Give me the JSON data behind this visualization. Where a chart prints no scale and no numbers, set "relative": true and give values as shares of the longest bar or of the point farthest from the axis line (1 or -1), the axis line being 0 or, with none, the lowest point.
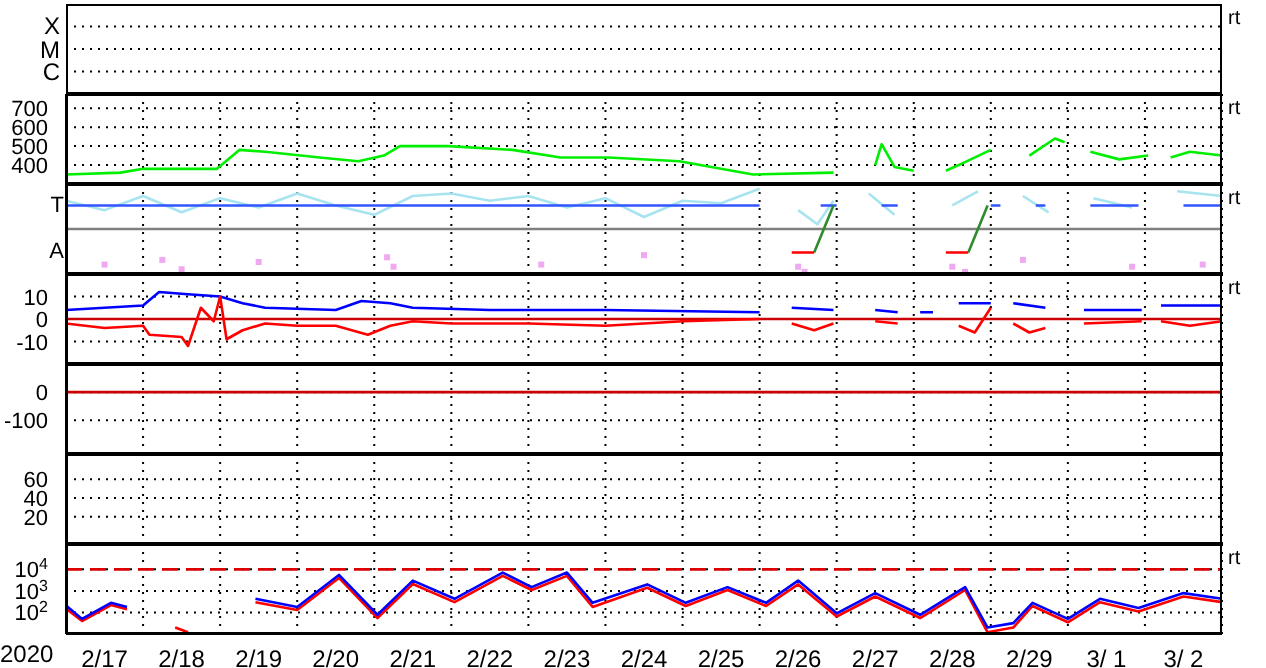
{
  "chart_data": [
    {
      "type": "other",
      "annotations": [
        "rt",
        "X",
        "M",
        "C"
      ]
    },
    {
      "type": "line",
      "ylim": [
        300,
        775
      ],
      "yticks": [
        400,
        500,
        600,
        700
      ],
      "xlim": [
        "2020-02-17",
        "2020-03-03"
      ],
      "xticks": [
        {
          "value": "2020-02-17",
          "label": null
        },
        {
          "value": "2020-02-18",
          "label": null
        },
        {
          "value": "2020-02-19",
          "label": null
        },
        {
          "value": "2020-02-20",
          "label": null
        },
        {
          "value": "2020-02-21",
          "label": null
        },
        {
          "value": "2020-02-22",
          "label": null
        },
        {
          "value": "2020-02-23",
          "label": null
        },
        {
          "value": "2020-02-24",
          "label": null
        },
        {
          "value": "2020-02-25",
          "label": null
        },
        {
          "value": "2020-02-26",
          "label": null
        },
        {
          "value": "2020-02-27",
          "label": null
        },
        {
          "value": "2020-02-28",
          "label": null
        },
        {
          "value": "2020-02-29",
          "label": null
        },
        {
          "value": "2020-03-01",
          "label": null
        },
        {
          "value": "2020-03-02",
          "label": null
        },
        {
          "value": "2020-03-03",
          "label": null
        }
      ],
      "grid": true,
      "tick_labels": "y",
      "annotations": [
        "rt"
      ],
      "series": [
        {
          "color": "#00ee00",
          "x": [
            "2020-02-17T00:00",
            "2020-02-17T17:00",
            "2020-02-18T00:00",
            "2020-02-18T23:00",
            "2020-02-19T06:00",
            "2020-02-19T14:00",
            "2020-02-20T07:00",
            "2020-02-20T19:00",
            "2020-02-21T03:00",
            "2020-02-21T08:00",
            "2020-02-21T23:00",
            "2020-02-22T19:00",
            "2020-02-23T10:00",
            "2020-02-24T01:00",
            "2020-02-24T23:00",
            "2020-02-25T12:00",
            "2020-02-25T22:00",
            "2020-02-26T23:00",
            "2020-02-27T06:00",
            "2020-02-27T12:00",
            "2020-02-27T14:00",
            "2020-02-27T18:00",
            "2020-02-28T00:00",
            "2020-02-28T05:00",
            "2020-02-28T10:00",
            "2020-02-28T14:00",
            "2020-02-29T00:00",
            "2020-02-29T06:00",
            "2020-02-29T12:00",
            "2020-02-29T20:00",
            "2020-02-29T23:00",
            "2020-03-01T04:00",
            "2020-03-01T07:00",
            "2020-03-01T16:00",
            "2020-03-02T01:00",
            "2020-03-02T04:00",
            "2020-03-02T08:00",
            "2020-03-02T14:00",
            "2020-03-03T00:00"
          ],
          "values": [
            350,
            360,
            380,
            380,
            480,
            470,
            440,
            420,
            450,
            500,
            500,
            480,
            440,
            440,
            420,
            380,
            350,
            360,
            null,
            400,
            510,
            390,
            370,
            null,
            370,
            400,
            480,
            null,
            450,
            540,
            520,
            null,
            470,
            430,
            450,
            null,
            440,
            470,
            450
          ]
        }
      ]
    },
    {
      "type": "line",
      "relative": true,
      "xlim": [
        "2020-02-17",
        "2020-03-03"
      ],
      "xticks": [
        {
          "value": "2020-02-17",
          "label": null
        },
        {
          "value": "2020-02-18",
          "label": null
        },
        {
          "value": "2020-02-19",
          "label": null
        },
        {
          "value": "2020-02-20",
          "label": null
        },
        {
          "value": "2020-02-21",
          "label": null
        },
        {
          "value": "2020-02-22",
          "label": null
        },
        {
          "value": "2020-02-23",
          "label": null
        },
        {
          "value": "2020-02-24",
          "label": null
        },
        {
          "value": "2020-02-25",
          "label": null
        },
        {
          "value": "2020-02-26",
          "label": null
        },
        {
          "value": "2020-02-27",
          "label": null
        },
        {
          "value": "2020-02-28",
          "label": null
        },
        {
          "value": "2020-02-29",
          "label": null
        },
        {
          "value": "2020-03-01",
          "label": null
        },
        {
          "value": "2020-03-02",
          "label": null
        },
        {
          "value": "2020-03-03",
          "label": null
        }
      ],
      "grid": true,
      "tick_labels": "y",
      "annotations": [
        "rt",
        "T",
        "A"
      ],
      "ref_lines": [
        {
          "axis": "y",
          "value": 0,
          "color": "#808080"
        }
      ],
      "series": [
        {
          "color": "#a8e4f0",
          "x": [
            "2020-02-17T00:00",
            "2020-02-17T12:00",
            "2020-02-18T00:00",
            "2020-02-18T12:00",
            "2020-02-19T00:00",
            "2020-02-19T12:00",
            "2020-02-20T00:00",
            "2020-02-20T12:00",
            "2020-02-21T00:00",
            "2020-02-21T12:00",
            "2020-02-22T00:00",
            "2020-02-22T12:00",
            "2020-02-23T00:00",
            "2020-02-23T12:00",
            "2020-02-24T00:00",
            "2020-02-24T12:00",
            "2020-02-25T00:00",
            "2020-02-25T12:00",
            "2020-02-26T00:00",
            "2020-02-26T04:00",
            "2020-02-26T12:00",
            "2020-02-26T18:00",
            "2020-02-26T23:00",
            "2020-02-27T04:00",
            "2020-02-27T10:00",
            "2020-02-27T18:00",
            "2020-02-28T00:00",
            "2020-02-28T12:00",
            "2020-02-28T20:00",
            "2020-02-29T04:00",
            "2020-02-29T10:00",
            "2020-02-29T18:00",
            "2020-03-01T00:00",
            "2020-03-01T08:00",
            "2020-03-01T20:00",
            "2020-03-02T03:00",
            "2020-03-02T10:00",
            "2020-03-03T00:00"
          ],
          "values": [
            0.66,
            0.44,
            0.77,
            0.39,
            0.72,
            0.5,
            0.83,
            0.55,
            0.33,
            0.77,
            0.83,
            0.66,
            0.77,
            0.5,
            0.72,
            0.28,
            0.66,
            0.6,
            0.94,
            null,
            0.44,
            0.11,
            0.66,
            null,
            0.83,
            0.33,
            null,
            0.55,
            0.88,
            null,
            0.77,
            0.39,
            null,
            0.72,
            0.5,
            null,
            0.88,
            0.77
          ]
        },
        {
          "type": "scatter",
          "marker": "square",
          "color": "#f0a8f0",
          "x": [
            "2020-02-17T12:00",
            "2020-02-18T06:00",
            "2020-02-18T12:00",
            "2020-02-19T12:00",
            "2020-02-21T04:00",
            "2020-02-21T06:00",
            "2020-02-23T04:00",
            "2020-02-24T12:00",
            "2020-02-26T12:00",
            "2020-02-26T14:00",
            "2020-02-28T12:00",
            "2020-02-28T16:00",
            "2020-02-29T10:00",
            "2020-03-01T20:00",
            "2020-03-02T18:00"
          ],
          "values": [
            -0.83,
            -0.72,
            -0.94,
            -0.77,
            -0.66,
            -0.88,
            -0.83,
            -0.61,
            -0.88,
            -1,
            -0.88,
            -1,
            -0.72,
            -0.88,
            -0.83
          ]
        },
        {
          "color": "#3355ff",
          "x": [
            "2020-02-17T00:00",
            "2020-02-26T00:00",
            "2020-02-26T12:00",
            "2020-02-26T19:00",
            "2020-02-27T00:00",
            "2020-02-27T06:00",
            "2020-02-27T14:00",
            "2020-02-27T19:00",
            "2020-02-28T00:00",
            "2020-02-29T00:00",
            "2020-02-29T03:00",
            "2020-02-29T08:00",
            "2020-02-29T14:00",
            "2020-02-29T17:00",
            "2020-03-01T00:00",
            "2020-03-01T07:00",
            "2020-03-01T22:00",
            "2020-03-02T04:00",
            "2020-03-02T12:00",
            "2020-03-03T00:00"
          ],
          "values": [
            0.55,
            0.55,
            null,
            0.55,
            0.55,
            null,
            0.55,
            0.55,
            null,
            0.55,
            0.55,
            null,
            0.55,
            0.55,
            null,
            0.55,
            0.55,
            null,
            0.55,
            0.55
          ]
        },
        {
          "color": "#ff0000",
          "x": [
            "2020-02-26T10:00",
            "2020-02-26T17:00",
            "2020-02-27T00:00",
            "2020-02-28T10:00",
            "2020-02-28T17:00"
          ],
          "values": [
            -0.55,
            -0.55,
            null,
            -0.55,
            -0.55
          ]
        },
        {
          "color": "#2e8b2e",
          "x": [
            "2020-02-26T17:00",
            "2020-02-26T23:00",
            "2020-02-27T12:00",
            "2020-02-28T17:00",
            "2020-02-28T23:00"
          ],
          "values": [
            -0.55,
            0.55,
            null,
            -0.55,
            0.55
          ]
        }
      ]
    },
    {
      "type": "line",
      "ylim": [
        -20,
        20
      ],
      "yticks": [
        -10,
        0,
        10
      ],
      "xlim": [
        "2020-02-17",
        "2020-03-03"
      ],
      "xticks": [
        {
          "value": "2020-02-17",
          "label": null
        },
        {
          "value": "2020-02-18",
          "label": null
        },
        {
          "value": "2020-02-19",
          "label": null
        },
        {
          "value": "2020-02-20",
          "label": null
        },
        {
          "value": "2020-02-21",
          "label": null
        },
        {
          "value": "2020-02-22",
          "label": null
        },
        {
          "value": "2020-02-23",
          "label": null
        },
        {
          "value": "2020-02-24",
          "label": null
        },
        {
          "value": "2020-02-25",
          "label": null
        },
        {
          "value": "2020-02-26",
          "label": null
        },
        {
          "value": "2020-02-27",
          "label": null
        },
        {
          "value": "2020-02-28",
          "label": null
        },
        {
          "value": "2020-02-29",
          "label": null
        },
        {
          "value": "2020-03-01",
          "label": null
        },
        {
          "value": "2020-03-02",
          "label": null
        },
        {
          "value": "2020-03-03",
          "label": null
        }
      ],
      "grid": true,
      "tick_labels": "y",
      "annotations": [
        "rt"
      ],
      "ref_lines": [
        {
          "axis": "y",
          "value": 0,
          "color": "#cc0000"
        }
      ],
      "series": [
        {
          "color": "#0000ff",
          "x": [
            "2020-02-17T00:00",
            "2020-02-17T12:00",
            "2020-02-18T00:00",
            "2020-02-18T05:00",
            "2020-02-18T14:00",
            "2020-02-19T00:00",
            "2020-02-19T07:00",
            "2020-02-19T14:00",
            "2020-02-20T12:00",
            "2020-02-20T20:00",
            "2020-02-21T05:00",
            "2020-02-21T12:00",
            "2020-02-22T12:00",
            "2020-02-24T00:00",
            "2020-02-26T00:00",
            "2020-02-26T05:00",
            "2020-02-26T10:00",
            "2020-02-26T23:00",
            "2020-02-27T06:00",
            "2020-02-27T12:00",
            "2020-02-27T19:00",
            "2020-02-28T00:00",
            "2020-02-28T02:00",
            "2020-02-28T06:00",
            "2020-02-28T09:00",
            "2020-02-28T14:00",
            "2020-02-29T00:00",
            "2020-02-29T04:00",
            "2020-02-29T07:00",
            "2020-02-29T17:00",
            "2020-02-29T20:00",
            "2020-03-01T05:00",
            "2020-03-01T23:00",
            "2020-03-02T03:00",
            "2020-03-02T05:00",
            "2020-03-03T00:00"
          ],
          "values": [
            4,
            5,
            6,
            12,
            11,
            10,
            7,
            5,
            4,
            8,
            7,
            5,
            4,
            4,
            3,
            null,
            5,
            4,
            null,
            4,
            3,
            null,
            3,
            3,
            null,
            7,
            7,
            null,
            7,
            5,
            null,
            4,
            4,
            null,
            6,
            6
          ]
        },
        {
          "color": "#ff0000",
          "x": [
            "2020-02-17T00:00",
            "2020-02-17T12:00",
            "2020-02-18T00:00",
            "2020-02-18T02:00",
            "2020-02-18T12:00",
            "2020-02-18T14:00",
            "2020-02-18T18:00",
            "2020-02-18T22:00",
            "2020-02-19T00:00",
            "2020-02-19T02:00",
            "2020-02-19T07:00",
            "2020-02-19T14:00",
            "2020-02-20T00:00",
            "2020-02-20T12:00",
            "2020-02-20T22:00",
            "2020-02-21T05:00",
            "2020-02-21T12:00",
            "2020-02-22T00:00",
            "2020-02-23T00:00",
            "2020-02-24T00:00",
            "2020-02-25T00:00",
            "2020-02-26T00:00",
            "2020-02-26T05:00",
            "2020-02-26T10:00",
            "2020-02-26T17:00",
            "2020-02-26T23:00",
            "2020-02-27T06:00",
            "2020-02-27T12:00",
            "2020-02-27T19:00",
            "2020-02-28T00:00",
            "2020-02-28T14:00",
            "2020-02-28T19:00",
            "2020-02-29T00:00",
            "2020-02-29T04:00",
            "2020-02-29T07:00",
            "2020-02-29T12:00",
            "2020-02-29T17:00",
            "2020-02-29T20:00",
            "2020-03-01T05:00",
            "2020-03-01T23:00",
            "2020-03-02T03:00",
            "2020-03-02T05:00",
            "2020-03-02T14:00",
            "2020-03-03T00:00"
          ],
          "values": [
            -2,
            -4,
            -3,
            -7,
            -8,
            -12,
            5,
            -1,
            10,
            -9,
            -5,
            -2,
            -3,
            -3,
            -7,
            -3,
            -1,
            -2,
            -2,
            -3,
            -1,
            0,
            null,
            -2,
            -5,
            -2,
            null,
            -1,
            -2,
            null,
            -3,
            -6,
            5,
            null,
            -2,
            -6,
            -4,
            null,
            -2,
            -1,
            null,
            -1,
            -3,
            -1
          ]
        }
      ]
    },
    {
      "type": "line",
      "ylim": [
        -220,
        100
      ],
      "yticks": [
        -100,
        0
      ],
      "xlim": [
        "2020-02-17",
        "2020-03-03"
      ],
      "xticks": [
        {
          "value": "2020-02-17",
          "label": null
        },
        {
          "value": "2020-02-18",
          "label": null
        },
        {
          "value": "2020-02-19",
          "label": null
        },
        {
          "value": "2020-02-20",
          "label": null
        },
        {
          "value": "2020-02-21",
          "label": null
        },
        {
          "value": "2020-02-22",
          "label": null
        },
        {
          "value": "2020-02-23",
          "label": null
        },
        {
          "value": "2020-02-24",
          "label": null
        },
        {
          "value": "2020-02-25",
          "label": null
        },
        {
          "value": "2020-02-26",
          "label": null
        },
        {
          "value": "2020-02-27",
          "label": null
        },
        {
          "value": "2020-02-28",
          "label": null
        },
        {
          "value": "2020-02-29",
          "label": null
        },
        {
          "value": "2020-03-01",
          "label": null
        },
        {
          "value": "2020-03-02",
          "label": null
        },
        {
          "value": "2020-03-03",
          "label": null
        }
      ],
      "grid": true,
      "tick_labels": "y",
      "ref_lines": [
        {
          "axis": "y",
          "value": 0,
          "color": "#cc0000"
        }
      ]
    },
    {
      "type": "line",
      "ylim": [
        -9,
        87
      ],
      "yticks": [
        20,
        40,
        60
      ],
      "xlim": [
        "2020-02-17",
        "2020-03-03"
      ],
      "xticks": [
        {
          "value": "2020-02-17",
          "label": null
        },
        {
          "value": "2020-02-18",
          "label": null
        },
        {
          "value": "2020-02-19",
          "label": null
        },
        {
          "value": "2020-02-20",
          "label": null
        },
        {
          "value": "2020-02-21",
          "label": null
        },
        {
          "value": "2020-02-22",
          "label": null
        },
        {
          "value": "2020-02-23",
          "label": null
        },
        {
          "value": "2020-02-24",
          "label": null
        },
        {
          "value": "2020-02-25",
          "label": null
        },
        {
          "value": "2020-02-26",
          "label": null
        },
        {
          "value": "2020-02-27",
          "label": null
        },
        {
          "value": "2020-02-28",
          "label": null
        },
        {
          "value": "2020-02-29",
          "label": null
        },
        {
          "value": "2020-03-01",
          "label": null
        },
        {
          "value": "2020-03-02",
          "label": null
        },
        {
          "value": "2020-03-03",
          "label": null
        }
      ],
      "grid": true,
      "tick_labels": "y"
    },
    {
      "type": "line",
      "log": true,
      "ylim": [
        10,
        150000
      ],
      "yticks": [
        {
          "value": 100,
          "label": "10$^{2}$"
        },
        {
          "value": 1000,
          "label": "10$^{3}$"
        },
        {
          "value": 10000,
          "label": "10$^{4}$"
        }
      ],
      "xlim": [
        "2020-02-17",
        "2020-03-03"
      ],
      "xlabel": "2020",
      "xticks": [
        {
          "value": "2020-02-17",
          "label": null
        },
        {
          "value": "2020-02-17T12:00",
          "label": "2/17"
        },
        {
          "value": "2020-02-18",
          "label": null
        },
        {
          "value": "2020-02-18T12:00",
          "label": "2/18"
        },
        {
          "value": "2020-02-19",
          "label": null
        },
        {
          "value": "2020-02-19T12:00",
          "label": "2/19"
        },
        {
          "value": "2020-02-20",
          "label": null
        },
        {
          "value": "2020-02-20T12:00",
          "label": "2/20"
        },
        {
          "value": "2020-02-21",
          "label": null
        },
        {
          "value": "2020-02-21T12:00",
          "label": "2/21"
        },
        {
          "value": "2020-02-22",
          "label": null
        },
        {
          "value": "2020-02-22T12:00",
          "label": "2/22"
        },
        {
          "value": "2020-02-23",
          "label": null
        },
        {
          "value": "2020-02-23T12:00",
          "label": "2/23"
        },
        {
          "value": "2020-02-24",
          "label": null
        },
        {
          "value": "2020-02-24T12:00",
          "label": "2/24"
        },
        {
          "value": "2020-02-25",
          "label": null
        },
        {
          "value": "2020-02-25T12:00",
          "label": "2/25"
        },
        {
          "value": "2020-02-26",
          "label": null
        },
        {
          "value": "2020-02-26T12:00",
          "label": "2/26"
        },
        {
          "value": "2020-02-27",
          "label": null
        },
        {
          "value": "2020-02-27T12:00",
          "label": "2/27"
        },
        {
          "value": "2020-02-28",
          "label": null
        },
        {
          "value": "2020-02-28T12:00",
          "label": "2/28"
        },
        {
          "value": "2020-02-29",
          "label": null
        },
        {
          "value": "2020-02-29T12:00",
          "label": "2/29"
        },
        {
          "value": "2020-03-01",
          "label": null
        },
        {
          "value": "2020-03-01T12:00",
          "label": "3/ 1"
        },
        {
          "value": "2020-03-02",
          "label": null
        },
        {
          "value": "2020-03-02T12:00",
          "label": "3/ 2"
        },
        {
          "value": "2020-03-03",
          "label": null
        }
      ],
      "grid": true,
      "annotations": [
        "rt"
      ],
      "ref_lines": [
        {
          "axis": "y",
          "value": 10000,
          "color": "#dd0000",
          "line_style": "dashed"
        }
      ],
      "series": [
        {
          "color": "#ff0000",
          "x": [
            "2020-02-17T00:00",
            "2020-02-17T05:00",
            "2020-02-17T14:00",
            "2020-02-17T19:00",
            "2020-02-18T06:00",
            "2020-02-18T10:00",
            "2020-02-18T14:00",
            "2020-02-18T20:00",
            "2020-02-19T08:00",
            "2020-02-19T11:00",
            "2020-02-20T00:00",
            "2020-02-20T13:00",
            "2020-02-21T01:00",
            "2020-02-21T12:00",
            "2020-02-22T01:00",
            "2020-02-22T16:00",
            "2020-02-23T01:00",
            "2020-02-23T12:00",
            "2020-02-23T20:00",
            "2020-02-24T13:00",
            "2020-02-25T01:00",
            "2020-02-25T14:00",
            "2020-02-26T02:00",
            "2020-02-26T12:00",
            "2020-02-27T00:00",
            "2020-02-27T12:00",
            "2020-02-28T02:00",
            "2020-02-28T16:00",
            "2020-02-28T23:00",
            "2020-02-29T07:00",
            "2020-02-29T13:00",
            "2020-03-01T00:00",
            "2020-03-01T10:00",
            "2020-03-01T22:00",
            "2020-03-02T12:00",
            "2020-03-03T00:00"
          ],
          "values": [
            150,
            40,
            220,
            140,
            null,
            20,
            12,
            null,
            null,
            300,
            130,
            4000,
            55,
            2100,
            300,
            5000,
            1100,
            5000,
            180,
            1400,
            200,
            1100,
            200,
            2000,
            65,
            550,
            55,
            1100,
            12,
            20,
            200,
            35,
            300,
            110,
            550,
            300
          ]
        },
        {
          "color": "#0000ff",
          "x": [
            "2020-02-17T00:00",
            "2020-02-17T05:00",
            "2020-02-17T14:00",
            "2020-02-17T19:00",
            "2020-02-18T06:00",
            "2020-02-18T12:00",
            "2020-02-19T08:00",
            "2020-02-19T11:00",
            "2020-02-20T00:00",
            "2020-02-20T13:00",
            "2020-02-21T01:00",
            "2020-02-21T12:00",
            "2020-02-22T01:00",
            "2020-02-22T16:00",
            "2020-02-23T01:00",
            "2020-02-23T12:00",
            "2020-02-23T20:00",
            "2020-02-24T13:00",
            "2020-02-25T01:00",
            "2020-02-25T14:00",
            "2020-02-26T02:00",
            "2020-02-26T12:00",
            "2020-02-27T00:00",
            "2020-02-27T12:00",
            "2020-02-28T02:00",
            "2020-02-28T16:00",
            "2020-02-28T23:00",
            "2020-02-29T07:00",
            "2020-02-29T13:00",
            "2020-03-01T00:00",
            "2020-03-01T10:00",
            "2020-03-01T22:00",
            "2020-03-02T12:00",
            "2020-03-03T00:00"
          ],
          "values": [
            210,
            50,
            280,
            180,
            null,
            null,
            null,
            430,
            180,
            5500,
            78,
            3000,
            430,
            7100,
            1500,
            7100,
            280,
            2000,
            280,
            1500,
            280,
            3000,
            91,
            790,
            78,
            1500,
            20,
            32,
            280,
            50,
            430,
            160,
            790,
            430
          ]
        }
      ]
    }
  ]
}
